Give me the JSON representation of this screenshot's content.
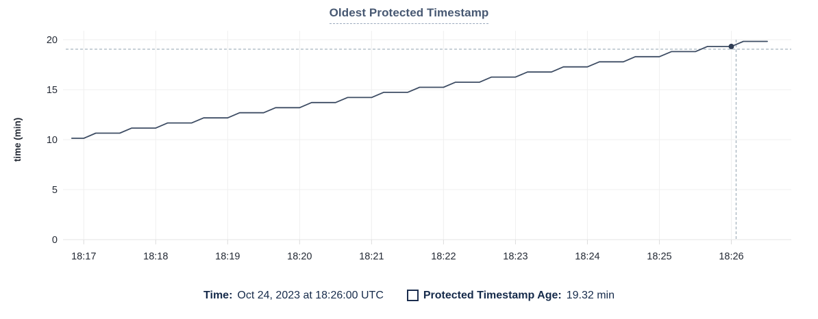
{
  "header": {
    "title": "Oldest Protected Timestamp"
  },
  "colors": {
    "background": "#ffffff",
    "title": "#475872",
    "title_underline": "#9aa8bd",
    "line": "#3d4c63",
    "dot": "#2f3d55",
    "crosshair": "#a6b4bf",
    "grid": "#efefef",
    "grid_zero": "#e4e4e4",
    "tick_stub": "#dcdcdc",
    "tick_label": "#242a35",
    "axis_title": "#242a35",
    "legend_text": "#152a4a",
    "swatch_border": "#1b2d4e"
  },
  "chart_data": {
    "type": "line",
    "title": "Oldest Protected Timestamp",
    "xlabel": "",
    "ylabel": "time (min)",
    "ylim": [
      0,
      20
    ],
    "y_ticks": [
      0,
      5,
      10,
      15,
      20
    ],
    "x_ticks": [
      "18:17",
      "18:18",
      "18:19",
      "18:20",
      "18:21",
      "18:22",
      "18:23",
      "18:24",
      "18:25",
      "18:26"
    ],
    "x_domain": [
      "18:16:45",
      "18:26:50"
    ],
    "grid": true,
    "legend_position": "bottom",
    "series": [
      {
        "name": "Protected Timestamp Age",
        "unit": "min",
        "times": [
          "18:16:50",
          "18:17:00",
          "18:17:10",
          "18:17:20",
          "18:17:30",
          "18:17:40",
          "18:17:50",
          "18:18:00",
          "18:18:10",
          "18:18:20",
          "18:18:30",
          "18:18:40",
          "18:18:50",
          "18:19:00",
          "18:19:10",
          "18:19:20",
          "18:19:30",
          "18:19:40",
          "18:19:50",
          "18:20:00",
          "18:20:10",
          "18:20:20",
          "18:20:30",
          "18:20:40",
          "18:20:50",
          "18:21:00",
          "18:21:10",
          "18:21:20",
          "18:21:30",
          "18:21:40",
          "18:21:50",
          "18:22:00",
          "18:22:10",
          "18:22:20",
          "18:22:30",
          "18:22:40",
          "18:22:50",
          "18:23:00",
          "18:23:10",
          "18:23:20",
          "18:23:30",
          "18:23:40",
          "18:23:50",
          "18:24:00",
          "18:24:10",
          "18:24:20",
          "18:24:30",
          "18:24:40",
          "18:24:50",
          "18:25:00",
          "18:25:10",
          "18:25:20",
          "18:25:30",
          "18:25:40",
          "18:25:50",
          "18:26:00",
          "18:26:10",
          "18:26:20",
          "18:26:30"
        ],
        "values": [
          10.14,
          10.14,
          10.65,
          10.65,
          10.65,
          11.16,
          11.16,
          11.16,
          11.67,
          11.67,
          11.67,
          12.18,
          12.18,
          12.18,
          12.69,
          12.69,
          12.69,
          13.2,
          13.2,
          13.2,
          13.71,
          13.71,
          13.71,
          14.22,
          14.22,
          14.22,
          14.73,
          14.73,
          14.73,
          15.24,
          15.24,
          15.24,
          15.75,
          15.75,
          15.75,
          16.26,
          16.26,
          16.26,
          16.77,
          16.77,
          16.77,
          17.28,
          17.28,
          17.28,
          17.79,
          17.79,
          17.79,
          18.3,
          18.3,
          18.3,
          18.81,
          18.81,
          18.81,
          19.32,
          19.32,
          19.32,
          19.83,
          19.83,
          19.83
        ]
      }
    ],
    "highlight": {
      "time": "18:26:00",
      "value": 19.32
    },
    "crosshair": {
      "x_time": "18:26:04",
      "y_value": 19.05
    }
  },
  "legend": {
    "time_label": "Time:",
    "time_value": "Oct 24, 2023 at 18:26:00 UTC",
    "series_label": "Protected Timestamp Age:",
    "series_value": "19.32 min"
  }
}
